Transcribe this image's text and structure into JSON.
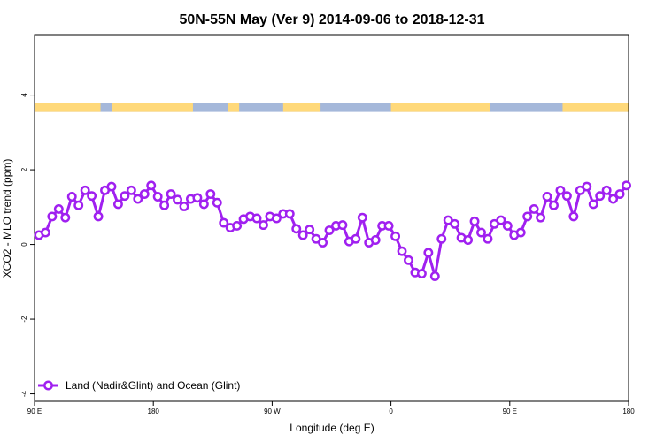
{
  "chart_data": {
    "type": "line",
    "title": "50N-55N May (Ver 9)   2014-09-06 to 2018-12-31",
    "xlabel": "Longitude (deg E)",
    "ylabel": "XCO2 - MLO trend (ppm)",
    "xlim": [
      -90,
      180
    ],
    "ylim": [
      -4.2,
      5.6
    ],
    "x_ticks": [
      {
        "value": -90,
        "label": "90 E"
      },
      {
        "value": -36,
        "label": "180"
      },
      {
        "value": 18,
        "label": "90 W"
      },
      {
        "value": 72,
        "label": "0"
      },
      {
        "value": 126,
        "label": "90 E"
      },
      {
        "value": 180,
        "label": "180"
      }
    ],
    "y_ticks": [
      {
        "value": -4,
        "label": "-4"
      },
      {
        "value": -2,
        "label": "-2"
      },
      {
        "value": 0,
        "label": "0"
      },
      {
        "value": 2,
        "label": "2"
      },
      {
        "value": 4,
        "label": "4"
      }
    ],
    "legend": {
      "position": "bottom-left"
    },
    "land_mask_band": {
      "ymin": 3.55,
      "ymax": 3.8,
      "land_color": "#FFD97A",
      "ocean_color": "#A5B8DA",
      "land_ranges": [
        [
          -90,
          -60
        ],
        [
          -55,
          -18
        ],
        [
          -2,
          3
        ],
        [
          23,
          40
        ],
        [
          72,
          117
        ],
        [
          150,
          180
        ]
      ]
    },
    "series": [
      {
        "name": "Land (Nadir&Glint) and Ocean (Glint)",
        "color": "#A020F0",
        "x": [
          -88,
          -85,
          -82,
          -79,
          -76,
          -73,
          -70,
          -67,
          -64,
          -61,
          -58,
          -55,
          -52,
          -49,
          -46,
          -43,
          -40,
          -37,
          -34,
          -31,
          -28,
          -25,
          -22,
          -19,
          -16,
          -13,
          -10,
          -7,
          -4,
          -1,
          2,
          5,
          8,
          11,
          14,
          17,
          20,
          23,
          26,
          29,
          32,
          35,
          38,
          41,
          44,
          47,
          50,
          53,
          56,
          59,
          62,
          65,
          68,
          71,
          74,
          77,
          80,
          83,
          86,
          89,
          92,
          95,
          98,
          101,
          104,
          107,
          110,
          113,
          116,
          119,
          122,
          125,
          128,
          131,
          134,
          137,
          140,
          143,
          146,
          149,
          152,
          155,
          158,
          161,
          164,
          167,
          170,
          173,
          176,
          179
        ],
        "y": [
          0.25,
          0.32,
          0.75,
          0.95,
          0.72,
          1.28,
          1.05,
          1.45,
          1.3,
          0.75,
          1.45,
          1.55,
          1.08,
          1.3,
          1.45,
          1.22,
          1.35,
          1.58,
          1.28,
          1.05,
          1.35,
          1.2,
          1.02,
          1.22,
          1.25,
          1.08,
          1.35,
          1.12,
          0.58,
          0.45,
          0.5,
          0.68,
          0.75,
          0.7,
          0.52,
          0.75,
          0.7,
          0.82,
          0.82,
          0.42,
          0.25,
          0.4,
          0.15,
          0.05,
          0.38,
          0.5,
          0.52,
          0.08,
          0.15,
          0.72,
          0.05,
          0.12,
          0.5,
          0.5,
          0.22,
          -0.18,
          -0.42,
          -0.75,
          -0.78,
          -0.22,
          -0.85,
          0.15,
          0.65,
          0.55,
          0.18,
          0.12,
          0.62,
          0.32,
          0.15,
          0.55,
          0.65,
          0.5,
          0.25,
          0.32,
          0.75,
          0.95,
          0.72,
          1.28,
          1.05,
          1.45,
          1.3,
          0.75,
          1.45,
          1.55,
          1.08,
          1.3,
          1.45,
          1.22,
          1.35,
          1.58
        ]
      }
    ]
  }
}
